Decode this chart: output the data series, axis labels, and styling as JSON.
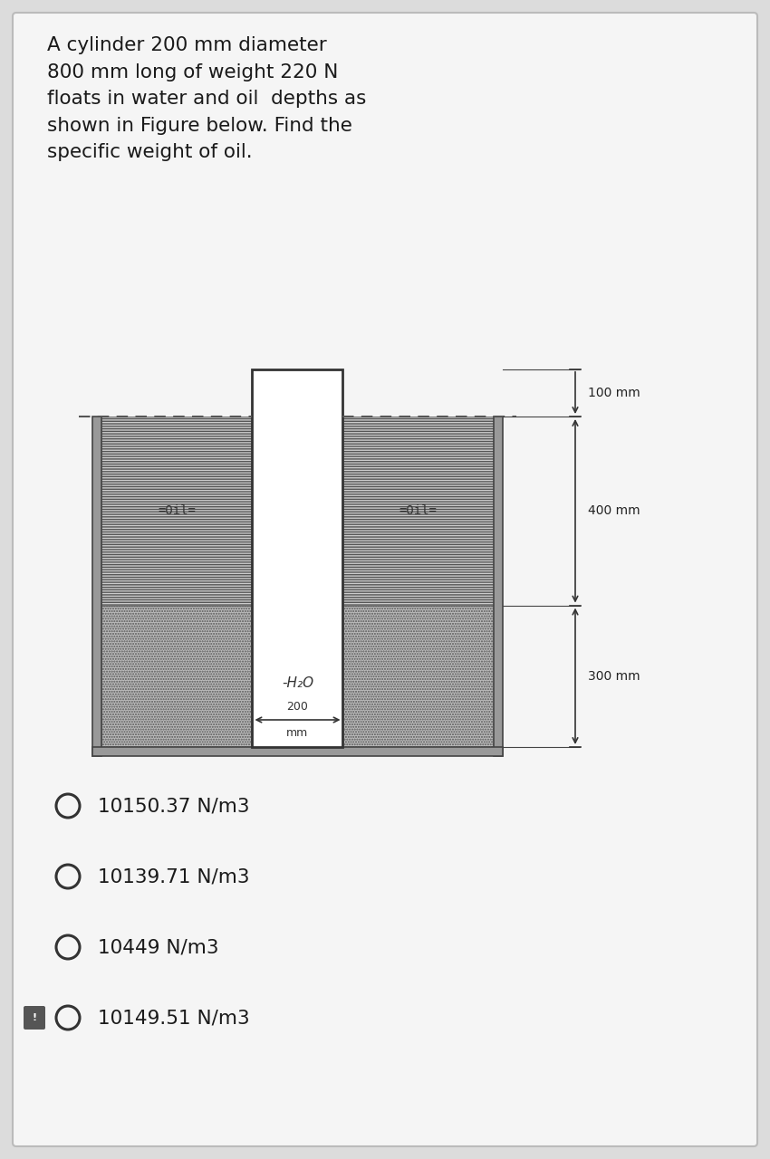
{
  "title_text": "A cylinder 200 mm diameter\n800 mm long of weight 220 N\nfloats in water and oil  depths as\nshown in Figure below. Find the\nspecific weight of oil.",
  "title_fontsize": 15.5,
  "bg_color": "#dcdcdc",
  "card_color": "#f0f0f0",
  "options": [
    "10150.37 N/m3",
    "10139.71 N/m3",
    "10449 N/m3",
    "10149.51 N/m3"
  ],
  "selected_option_index": 3,
  "dim_100": "100 mm",
  "dim_400": "400 mm",
  "dim_300": "300 mm",
  "dim_200": "200",
  "dim_200b": "mm",
  "label_oil": "Oil",
  "label_h2o": "-H₂O"
}
